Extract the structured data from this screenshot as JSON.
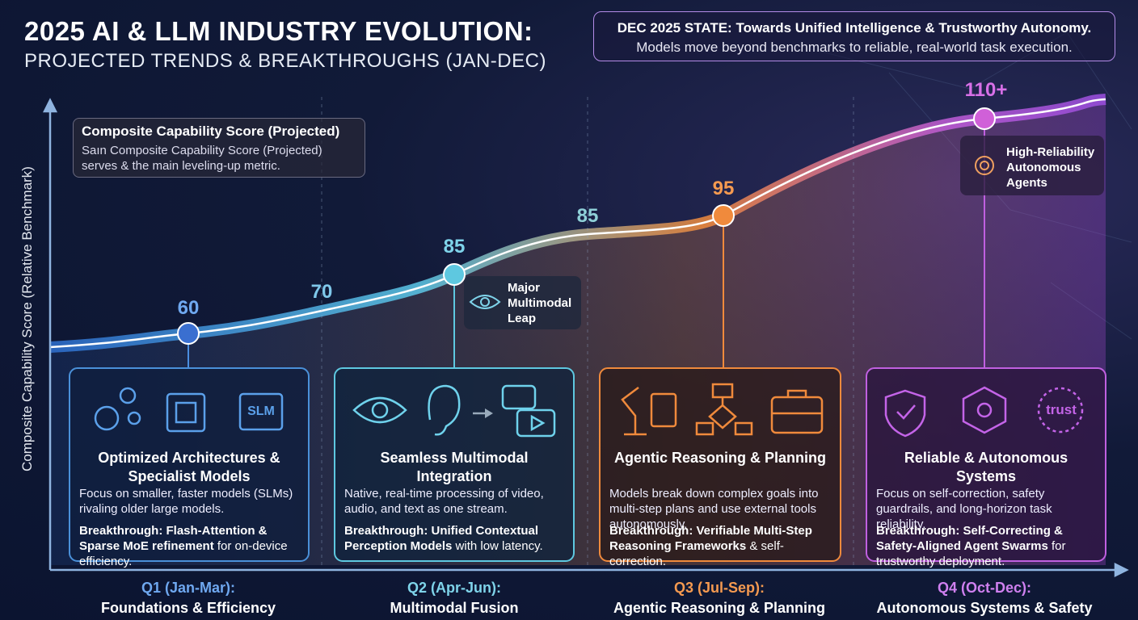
{
  "header": {
    "title": "2025 AI & LLM INDUSTRY EVOLUTION:",
    "subtitle": "PROJECTED TRENDS & BREAKTHROUGHS (JAN-DEC)"
  },
  "state_callout": {
    "heading": "DEC 2025 STATE: Towards Unified Intelligence & Trustworthy Autonomy.",
    "text": "Models move beyond benchmarks to reliable, real-world task execution."
  },
  "y_axis_label": "Composite Capability Score (Relative Benchmark)",
  "metric_box": {
    "title": "Composite Capability Score (Projected)",
    "text": "Saın Composite Capability Score (Projected) serves & the main leveling-up metric."
  },
  "point_labels": [
    "60",
    "70",
    "85",
    "85",
    "95",
    "110+"
  ],
  "annotations": [
    "Major Multimodal Leap",
    "High-Reliability Autonomous Agents"
  ],
  "icon_labels": [
    "SLM",
    "trust"
  ],
  "quarters": [
    {
      "period": "Q1 (Jan-Mar):",
      "theme": "Foundations & Efficiency",
      "card_title": "Optimized Architectures & Specialist Models",
      "description": "Focus on smaller, faster models (SLMs) rivaling older large models.",
      "breakthrough": "Breakthrough: Flash-Attention & Sparse MoE refinement",
      "breakthrough_rest": " for on-device efficiency."
    },
    {
      "period": "Q2 (Apr-Jun):",
      "theme": "Multimodal Fusion",
      "card_title": "Seamless Multimodal Integration",
      "description": "Native, real-time processing of video, audio, and text as one stream.",
      "breakthrough": "Breakthrough: Unified Contextual Perception Models",
      "breakthrough_rest": " with low latency."
    },
    {
      "period": "Q3 (Jul-Sep):",
      "theme": "Agentic Reasoning & Planning",
      "card_title": "Agentic Reasoning & Planning",
      "description": "Models break down complex goals into multi-step plans and use external tools autonomously.",
      "breakthrough": "Breakthrough: Verifiable Multi-Step Reasoning Frameworks",
      "breakthrough_rest": " & self-correction."
    },
    {
      "period": "Q4 (Oct-Dec):",
      "theme": "Autonomous Systems & Safety",
      "card_title": "Reliable & Autonomous Systems",
      "description": "Focus on self-correction, safety guardrails, and long-horizon task reliability.",
      "breakthrough": "Breakthrough: Self-Correcting & Safety-Aligned Agent Swarms",
      "breakthrough_rest": " for trustworthy deployment."
    }
  ]
}
